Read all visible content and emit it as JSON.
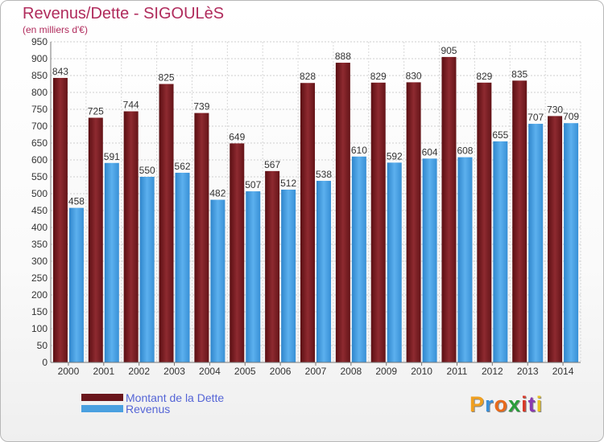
{
  "title": "Revenus/Dette - SIGOULèS",
  "subtitle": "(en milliers d'€)",
  "logo": {
    "letters": [
      "P",
      "r",
      "o",
      "x",
      "i",
      "t",
      "i"
    ],
    "colors": [
      "#f0a020",
      "#3a8fd8",
      "#e86a1a",
      "#2a9d3a",
      "#d83a2a",
      "#8a3ab0",
      "#e8c020"
    ]
  },
  "colors": {
    "dette": "#7a1e24",
    "revenus": "#4aa0e0",
    "title": "#b02b5c",
    "legend_text": "#5565d6"
  },
  "chart_data": {
    "type": "bar",
    "title": "Revenus/Dette - SIGOULèS",
    "subtitle": "(en milliers d'€)",
    "categories": [
      "2000",
      "2001",
      "2002",
      "2003",
      "2004",
      "2005",
      "2006",
      "2007",
      "2008",
      "2009",
      "2010",
      "2011",
      "2012",
      "2013",
      "2014"
    ],
    "series": [
      {
        "name": "Montant de la Dette",
        "values": [
          843,
          725,
          744,
          825,
          739,
          649,
          567,
          828,
          888,
          829,
          830,
          905,
          829,
          835,
          730
        ]
      },
      {
        "name": "Revenus",
        "values": [
          458,
          591,
          550,
          562,
          482,
          507,
          512,
          538,
          610,
          592,
          604,
          608,
          655,
          707,
          709
        ]
      }
    ],
    "ylim": [
      0,
      950
    ],
    "yticks": [
      0,
      50,
      100,
      150,
      200,
      250,
      300,
      350,
      400,
      450,
      500,
      550,
      600,
      650,
      700,
      750,
      800,
      850,
      900,
      950
    ],
    "grid": true,
    "legend": "bottom-left"
  }
}
